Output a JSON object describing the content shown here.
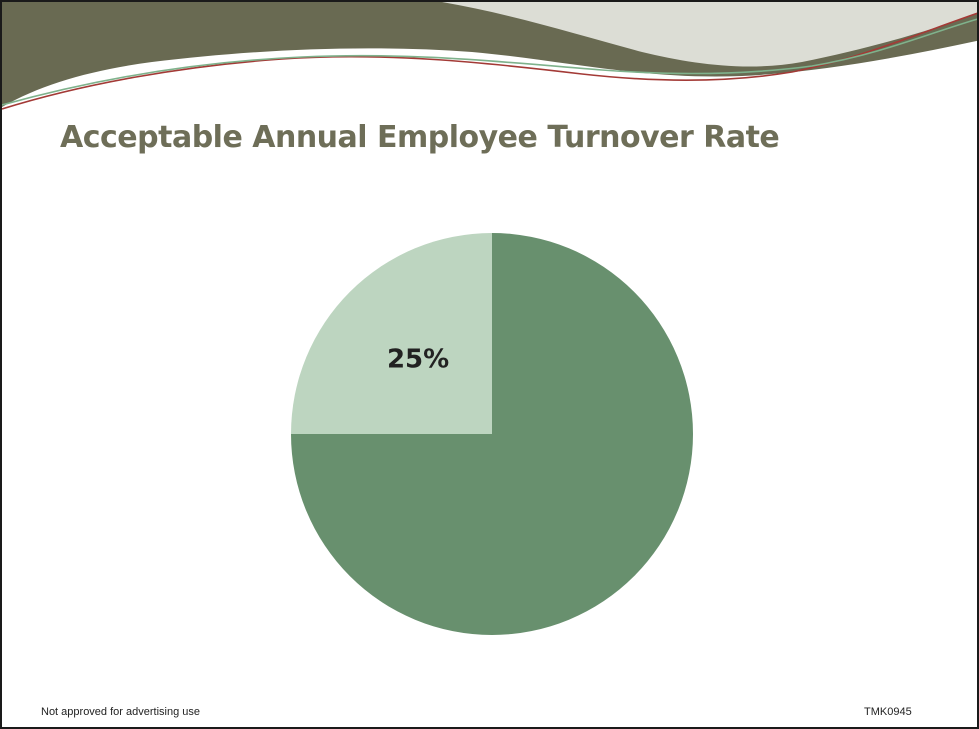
{
  "slide": {
    "title": "Acceptable Annual Employee Turnover Rate",
    "footer_left": "Not approved for advertising use",
    "footer_right": "TMK0945"
  },
  "theme": {
    "title_color": "#6e6e58",
    "banner_dark": "#696a52",
    "banner_light": "#dcddd5",
    "line_red": "#a33a36",
    "line_green": "#7fb28c"
  },
  "chart_data": {
    "type": "pie",
    "title": "",
    "slices": [
      {
        "value": 75,
        "label": "",
        "color": "#68906e"
      },
      {
        "value": 25,
        "label": "25%",
        "color": "#bdd5c0"
      }
    ],
    "legend": "none"
  }
}
